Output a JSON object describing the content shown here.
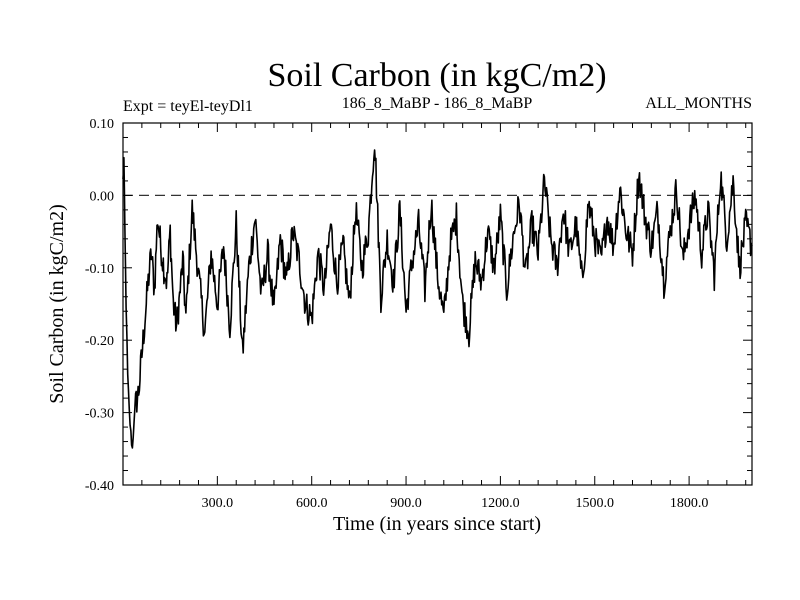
{
  "chart_data": {
    "type": "line",
    "title": "Soil Carbon (in kgC/m2)",
    "subtitle_left": "Expt = teyEl-teyDl1",
    "subtitle_center": "186_8_MaBP - 186_8_MaBP",
    "subtitle_right": "ALL_MONTHS",
    "xlabel": "Time (in years since start)",
    "ylabel": "Soil Carbon (in kgC/m2)",
    "xlim": [
      0,
      2000
    ],
    "ylim": [
      -0.4,
      0.1
    ],
    "xticks": [
      300,
      600,
      900,
      1200,
      1500,
      1800
    ],
    "xtick_labels": [
      "300.0",
      "600.0",
      "900.0",
      "1200.0",
      "1500.0",
      "1800.0"
    ],
    "yticks": [
      0.1,
      0.0,
      -0.1,
      -0.2,
      -0.3,
      -0.4
    ],
    "ytick_labels": [
      "0.10",
      "0.00",
      "-0.10",
      "-0.20",
      "-0.30",
      "-0.40"
    ],
    "reference_line": 0.0,
    "series": [
      {
        "name": "Soil Carbon",
        "color": "#000000",
        "x": [
          0,
          3,
          6,
          10,
          15,
          20,
          25,
          30,
          35,
          40,
          50,
          60,
          70,
          80,
          90,
          100,
          110,
          120,
          130,
          140,
          150,
          160,
          170,
          180,
          190,
          200,
          220,
          240,
          260,
          280,
          300,
          320,
          340,
          360,
          380,
          400,
          420,
          440,
          460,
          480,
          500,
          520,
          540,
          560,
          580,
          600,
          620,
          640,
          660,
          680,
          700,
          720,
          740,
          760,
          780,
          800,
          810,
          820,
          840,
          860,
          880,
          900,
          920,
          940,
          960,
          980,
          1000,
          1020,
          1040,
          1060,
          1080,
          1100,
          1120,
          1140,
          1160,
          1180,
          1200,
          1220,
          1240,
          1260,
          1280,
          1300,
          1320,
          1340,
          1360,
          1380,
          1400,
          1420,
          1440,
          1460,
          1480,
          1500,
          1520,
          1540,
          1560,
          1580,
          1600,
          1620,
          1640,
          1660,
          1680,
          1700,
          1720,
          1740,
          1760,
          1780,
          1800,
          1820,
          1840,
          1860,
          1880,
          1900,
          1920,
          1940,
          1960,
          1980,
          2000
        ],
        "y": [
          0.02,
          0.05,
          -0.05,
          -0.15,
          -0.25,
          -0.3,
          -0.33,
          -0.35,
          -0.31,
          -0.29,
          -0.27,
          -0.22,
          -0.17,
          -0.12,
          -0.08,
          -0.13,
          -0.03,
          -0.07,
          -0.1,
          -0.12,
          -0.05,
          -0.15,
          -0.18,
          -0.14,
          -0.09,
          -0.17,
          -0.02,
          -0.11,
          -0.19,
          -0.08,
          -0.15,
          -0.07,
          -0.18,
          -0.04,
          -0.22,
          -0.1,
          -0.03,
          -0.14,
          -0.08,
          -0.16,
          -0.06,
          -0.12,
          -0.05,
          -0.09,
          -0.15,
          -0.17,
          -0.08,
          -0.13,
          -0.04,
          -0.12,
          -0.07,
          -0.15,
          -0.02,
          -0.1,
          -0.05,
          0.08,
          -0.03,
          -0.14,
          -0.06,
          -0.12,
          -0.02,
          -0.16,
          -0.09,
          -0.04,
          -0.13,
          -0.01,
          -0.11,
          -0.17,
          -0.07,
          -0.03,
          -0.15,
          -0.19,
          -0.09,
          -0.12,
          -0.05,
          -0.1,
          -0.03,
          -0.13,
          -0.06,
          -0.01,
          -0.11,
          -0.04,
          -0.08,
          0.02,
          -0.06,
          -0.1,
          -0.02,
          -0.08,
          -0.04,
          -0.12,
          -0.01,
          -0.06,
          -0.09,
          -0.03,
          -0.07,
          0.01,
          -0.05,
          -0.08,
          0.03,
          -0.03,
          -0.07,
          -0.02,
          -0.12,
          -0.05,
          0.01,
          -0.09,
          -0.04,
          0.0,
          -0.08,
          -0.02,
          -0.11,
          0.03,
          -0.06,
          0.02,
          -0.1,
          -0.04,
          -0.07
        ]
      }
    ]
  }
}
